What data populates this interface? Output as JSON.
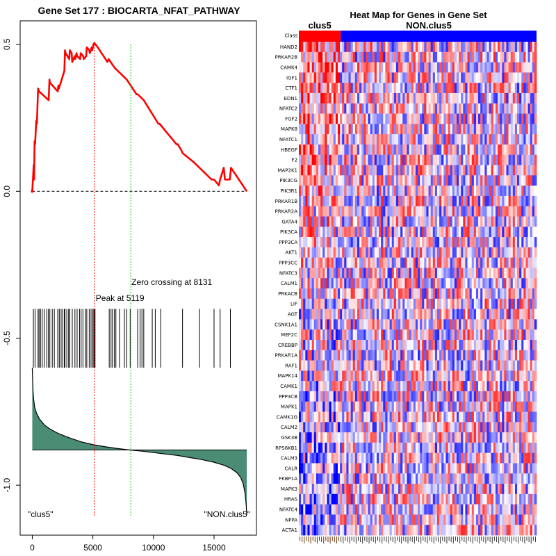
{
  "chart_data": [
    {
      "type": "line",
      "title": "Gene Set  177 : BIOCARTA_NFAT_PATHWAY",
      "xlabel": "",
      "ylabel": "",
      "xlim": [
        -1000,
        18500
      ],
      "ylim": [
        -1.17,
        0.58
      ],
      "x_ticks": [
        0,
        5000,
        10000,
        15000
      ],
      "x_tick_labels": [
        "0",
        "5000",
        "10000",
        "15000"
      ],
      "y_ticks": [
        0.5,
        0.0,
        -0.5,
        -1.0
      ],
      "y_tick_labels": [
        "0.5",
        "0.0",
        "-0.5",
        "-1.0"
      ],
      "series": [
        {
          "name": "running enrichment score",
          "color": "#ff0000",
          "x": [
            0,
            120,
            150,
            190,
            230,
            330,
            380,
            480,
            560,
            1350,
            1420,
            1450,
            2100,
            2150,
            2200,
            2650,
            2700,
            2750,
            3050,
            3100,
            3250,
            3300,
            3500,
            3550,
            3650,
            3700,
            3950,
            4000,
            4200,
            4250,
            4450,
            4500,
            4700,
            4750,
            4900,
            4950,
            5050,
            5119,
            5400,
            6200,
            6300,
            6800,
            7800,
            8600,
            8700,
            9200,
            10400,
            10500,
            11900,
            12000,
            12300,
            12400,
            13300,
            14800,
            15000,
            15400,
            15500,
            15800,
            15900,
            16300,
            16400,
            17700
          ],
          "y": [
            0,
            0.09,
            0.04,
            0.17,
            0.16,
            0.24,
            0.23,
            0.35,
            0.34,
            0.31,
            0.38,
            0.37,
            0.34,
            0.36,
            0.35,
            0.41,
            0.48,
            0.47,
            0.45,
            0.48,
            0.47,
            0.44,
            0.46,
            0.45,
            0.47,
            0.46,
            0.45,
            0.47,
            0.46,
            0.45,
            0.46,
            0.49,
            0.48,
            0.47,
            0.49,
            0.48,
            0.5,
            0.505,
            0.49,
            0.44,
            0.45,
            0.42,
            0.38,
            0.33,
            0.33,
            0.31,
            0.23,
            0.23,
            0.16,
            0.16,
            0.14,
            0.13,
            0.1,
            0.04,
            0.04,
            0.02,
            0.04,
            0.08,
            0.04,
            0.04,
            0.08,
            0.0
          ]
        },
        {
          "name": "ranked list metric",
          "color": "#000000",
          "fill": "#4a8c74",
          "baseline": -0.88,
          "x": [
            0,
            60,
            120,
            200,
            350,
            600,
            1000,
            1500,
            2200,
            3000,
            4000,
            5000,
            6000,
            7000,
            8000,
            9000,
            10000,
            11000,
            12000,
            13000,
            14000,
            15000,
            15800,
            16400,
            16900,
            17200,
            17400,
            17550,
            17650,
            17700
          ],
          "y": [
            -0.6,
            -0.68,
            -0.71,
            -0.735,
            -0.755,
            -0.775,
            -0.795,
            -0.81,
            -0.825,
            -0.838,
            -0.852,
            -0.862,
            -0.869,
            -0.875,
            -0.88,
            -0.884,
            -0.889,
            -0.894,
            -0.899,
            -0.906,
            -0.913,
            -0.922,
            -0.932,
            -0.943,
            -0.958,
            -0.974,
            -0.995,
            -1.025,
            -1.065,
            -1.1
          ]
        }
      ],
      "gene_hits": [
        90,
        230,
        480,
        560,
        680,
        820,
        980,
        1200,
        1330,
        1450,
        1650,
        1820,
        2100,
        2230,
        2380,
        2520,
        2650,
        2700,
        2850,
        3000,
        3100,
        3300,
        3520,
        3700,
        3900,
        4030,
        4180,
        4400,
        4500,
        4700,
        4850,
        5000,
        5080,
        5119,
        5180,
        6350,
        6500,
        6620,
        6780,
        6900,
        7200,
        7600,
        7800,
        8080,
        8700,
        8900,
        9050,
        9200,
        9900,
        10150,
        10600,
        12400,
        13800,
        15000,
        15500,
        16350
      ],
      "hit_band": [
        -0.6,
        -0.4
      ],
      "peak": {
        "x": 5119,
        "label": "Peak at 5119",
        "color": "#ff0000"
      },
      "zero_crossing": {
        "x": 8131,
        "label": "Zero crossing at 8131",
        "color": "#00cc00"
      },
      "left_label": "\"clus5\"",
      "right_label": "\"NON.clus5\""
    },
    {
      "type": "heatmap",
      "title": "Heat Map for Genes in Gene Set",
      "class_labels": [
        "clus5",
        "NON.clus5"
      ],
      "class_colors": [
        "#ff0000",
        "#0000ff"
      ],
      "class_fraction": [
        0.176,
        0.824
      ],
      "n_samples": 110,
      "class_row_label": "Class",
      "genes": [
        "HAND2",
        "PRKAR2B",
        "CAMK4",
        "IGF1",
        "CTF1",
        "EDN1",
        "NFATC2",
        "FGF2",
        "MAPK8",
        "NFATC1",
        "HBEGF",
        "F2",
        "MAP2K1",
        "PIK3CG",
        "PIK3R1",
        "PRKAR1B",
        "PRKAR2A",
        "GATA4",
        "PIK3CA",
        "PPP3CA",
        "AKT1",
        "PPP3CC",
        "NFATC3",
        "CALM1",
        "PRKACB",
        "LIF",
        "AGT",
        "CSNK1A1",
        "MEF2C",
        "CREBBP",
        "PRKAR1A",
        "RAF1",
        "MAPK14",
        "CAMK1",
        "PPP3CB",
        "MAPK1",
        "CAMK1G",
        "CALM2",
        "GSK3B",
        "RPS6KB1",
        "CALM3",
        "CALR",
        "FKBP1A",
        "MAPK3",
        "HRAS",
        "NFATC4",
        "NPPA",
        "ACTA1"
      ],
      "color_low": "#0000ff",
      "color_mid": "#ffffff",
      "color_high": "#ff0000"
    }
  ]
}
